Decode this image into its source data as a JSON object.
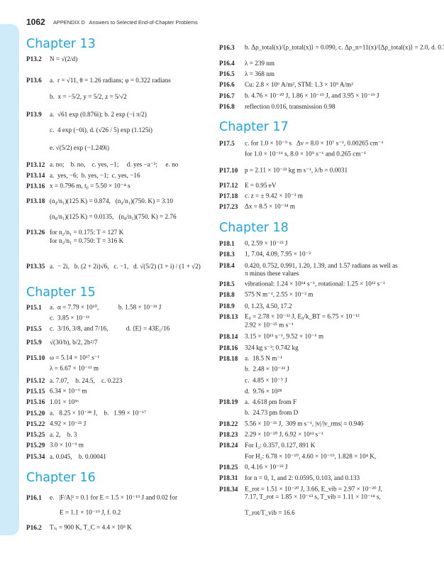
{
  "header": {
    "page_number": "1062",
    "running_head": "APPENDIX D   Answers to Selected End-of-Chapter Problems"
  },
  "colors": {
    "chapter_heading": "#19a6e3",
    "sidebar": "#cfeaf9"
  },
  "columns": [
    {
      "items": [
        {
          "heading": "Chapter 13"
        },
        {
          "label": "P13.2",
          "lines": [
            "N = √(2/d)"
          ]
        },
        {
          "label": "P13.6",
          "lines": [
            "a.  r = √11, θ = 1.26 radians; φ = 0.322 radians",
            "b.  x = −5/2, y = 5/2, z = 5/√2"
          ]
        },
        {
          "label": "P13.9",
          "lines": [
            "a.  √61 exp (0.876i); b. 2 exp (−i π/2)",
            "c.  4 exp (−0i), d. (√26 / 5) exp (1.125i)",
            "e. √(5/2) exp (−1.249i)"
          ]
        },
        {
          "label": "P13.12",
          "lines": [
            "a. no;    b. no,    c. yes, −1;     d. yes −a⁻²;     e. no"
          ]
        },
        {
          "label": "P13.14",
          "lines": [
            "a.  yes, −6;  b. yes, −1;  c. yes, −16"
          ]
        },
        {
          "label": "P13.16",
          "lines": [
            "x = 0.796 m, t₀ = 5.50 × 10⁻⁴ s"
          ]
        },
        {
          "label": "P13.18",
          "lines": [
            "(n₄/n₁)(125 K) = 0.874,   (n₄/n₁)(750. K) = 3.10",
            "(n₈/n₁)(125 K) = 0.0135,   (n₈/n₁)(750. K) = 2.76"
          ]
        },
        {
          "label": "P13.26",
          "lines": [
            "for n₂/n₁ = 0.175: T = 127 K",
            "for n₂/n₁ = 0.750: T = 316 K"
          ]
        },
        {
          "label": "P13.35",
          "lines": [
            "a.  − 2i,   b. (2 + 2i)√6,   c. −1,   d. √(5/2) (1 + i) / (1 + √2)"
          ]
        },
        {
          "heading": "Chapter 15"
        },
        {
          "label": "P15.1",
          "lines": [
            "a.  α = 7.79 × 10¹⁰,            b. 1.58 × 10⁻³¹ J",
            "c.  3.85 × 10⁻¹¹"
          ]
        },
        {
          "label": "P15.5",
          "lines": [
            "c.  3/16, 3/8, and 7/16,           d. ⟨E⟩ = 43E₁/16"
          ]
        },
        {
          "label": "P15.9",
          "lines": [
            "√(30/b), b/2, 2b²/7"
          ]
        },
        {
          "label": "P15.10",
          "lines": [
            "ω = 5.14 × 10¹⁷ s⁻¹",
            "λ = 6.67 × 10⁻¹¹ m"
          ]
        },
        {
          "label": "P15.12",
          "lines": [
            "a. 7.07,    b. 24.5,    c. 0.223"
          ]
        },
        {
          "label": "P15.15",
          "lines": [
            "6.34 × 10⁻⁶ m"
          ]
        },
        {
          "label": "P15.16",
          "lines": [
            "1.01 × 10³⁶"
          ]
        },
        {
          "label": "P15.20",
          "lines": [
            "a.   8.25 × 10⁻³⁸ J,    b.   1.99 × 10⁻¹⁷"
          ]
        },
        {
          "label": "P15.22",
          "lines": [
            "4.92 × 10⁻²¹ J"
          ]
        },
        {
          "label": "P15.25",
          "lines": [
            "a. 2,    b. 3"
          ]
        },
        {
          "label": "P15.29",
          "lines": [
            "3.0 × 10⁻⁹ m"
          ]
        },
        {
          "label": "P15.34",
          "lines": [
            "a. 0.045,    b. 0.00041"
          ]
        },
        {
          "heading": "Chapter 16"
        },
        {
          "label": "P16.1",
          "lines": [
            "e.   |F/A|² = 0.1 for E = 1.5 × 10⁻¹⁹ J and 0.02 for",
            "E = 1.1 × 10⁻¹⁹ J, f. 0.2"
          ]
        },
        {
          "label": "P16.2",
          "lines": [
            "Tₛᵢ = 900 K, T_C = 4.4 × 10³ K"
          ]
        }
      ]
    },
    {
      "items": [
        {
          "label": "P16.3",
          "lines": [
            "b. Δρ_total(x)/⟨ρ_total(x)⟩ = 0.090, c. Δρ_n=11(x)/⟨Δρ_total(x)⟩ = 2.0, d. 0.76"
          ]
        },
        {
          "label": "P16.4",
          "lines": [
            "λ = 239 nm"
          ]
        },
        {
          "label": "P16.5",
          "lines": [
            "λ = 368 nm"
          ]
        },
        {
          "label": "P16.6",
          "lines": [
            "Cu: 2.8 × 10⁶ A/m², STM: 1.3 × 10⁹ A/m²"
          ]
        },
        {
          "label": "P16.7",
          "lines": [
            "b. 4.76 × 10⁻²⁰ J, 1.86 × 10⁻¹⁹ J, and 3.95 × 10⁻¹⁹ J"
          ]
        },
        {
          "label": "P16.8",
          "lines": [
            "reflection 0.016, transmission 0.98"
          ]
        },
        {
          "heading": "Chapter 17"
        },
        {
          "label": "P17.5",
          "lines": [
            "c. for 1.0 × 10⁻⁹ s   Δν = 8.0 × 10⁷ s⁻¹, 0.00265 cm⁻¹",
            "for 1.0 × 10⁻¹¹ s, 8.0 × 10⁹ s⁻¹ and 0.265 cm⁻¹"
          ]
        },
        {
          "label": "P17.10",
          "lines": [
            "p = 2.11 × 10⁻²³ kg m s⁻¹, λ/b = 0.0031"
          ]
        },
        {
          "label": "P17.12",
          "lines": [
            "E = 0.95 eV"
          ]
        },
        {
          "label": "P17.18",
          "lines": [
            "c. z = ± 9.42 × 10⁻³ m"
          ]
        },
        {
          "label": "P17.23",
          "lines": [
            "Δx = 8.5 × 10⁻³⁴ m"
          ]
        },
        {
          "heading": "Chapter 18"
        },
        {
          "label": "P18.1",
          "lines": [
            "0, 2.59 × 10⁻²² J"
          ]
        },
        {
          "label": "P18.3",
          "lines": [
            "1, 7.04, 4.09, 7.95 × 10⁻²"
          ]
        },
        {
          "label": "P18.4",
          "lines": [
            "0.420, 0.752, 0.991, 1.20, 1.39, and 1.57 radians as well as",
            "π minus these values"
          ]
        },
        {
          "label": "P18.5",
          "lines": [
            "vibrational: 1.24 × 10¹⁴ s⁻¹, rotational: 1.25 × 10¹² s⁻¹"
          ]
        },
        {
          "label": "P18.8",
          "lines": [
            "575 N m⁻¹, 2.55 × 10⁻² m"
          ]
        },
        {
          "label": "P18.9",
          "lines": [
            "0, 1.23, 4.50, 17.2"
          ]
        },
        {
          "label": "P18.13",
          "lines": [
            "E₀ = 2.78 × 10⁻³² J, E₀/k_BT = 6.75 × 10⁻¹²",
            "2.92 × 10⁻¹⁵ m s⁻¹"
          ]
        },
        {
          "label": "P18.14",
          "lines": [
            "3.15 × 10¹³ s⁻¹, 9.52 × 10⁻⁶ m"
          ]
        },
        {
          "label": "P18.16",
          "lines": [
            "324 kg s⁻²; 0.742 kg"
          ]
        },
        {
          "label": "P18.18",
          "lines": [
            "a.  18.5 N m⁻¹",
            "b.  2.48 × 10⁻³³ J",
            "c.  4.85 × 10⁻⁵ J",
            "d.  9.76 × 10²⁸"
          ]
        },
        {
          "label": "P18.19",
          "lines": [
            "a.  4.618 pm from F",
            "b.  24.73 pm from D"
          ]
        },
        {
          "label": "P18.22",
          "lines": [
            "5.56 × 10⁻²¹ J,  309 m s⁻¹, |v|/|v_rms| = 0.946"
          ]
        },
        {
          "label": "P18.23",
          "lines": [
            "2.29 × 10⁻²⁰ J, 6.92 × 10¹³ s⁻¹"
          ]
        },
        {
          "label": "P18.24",
          "lines": [
            "For I₂: 0.357, 0.127, 891 K",
            "For H₂: 6.78 × 10⁻¹⁰, 4.60 × 10⁻¹⁹, 1.828 × 10⁴ K,"
          ]
        },
        {
          "label": "P18.25",
          "lines": [
            "0, 4.16 × 10⁻²² J"
          ]
        },
        {
          "label": "P18.31",
          "lines": [
            "for n = 0, 1, and 2: 0.0595, 0.103, and 0.133"
          ]
        },
        {
          "label": "P18.34",
          "lines": [
            "E_rot = 1.51 × 10⁻²⁰ J, 3.66, E_vib = 2.97 × 10⁻²⁰ J,",
            "7.17, T_rot = 1.85 × 10⁻¹³ s, T_vib = 1.11 × 10⁻¹⁴ s,",
            "T_rot/T_vib = 16.6"
          ]
        }
      ]
    }
  ]
}
